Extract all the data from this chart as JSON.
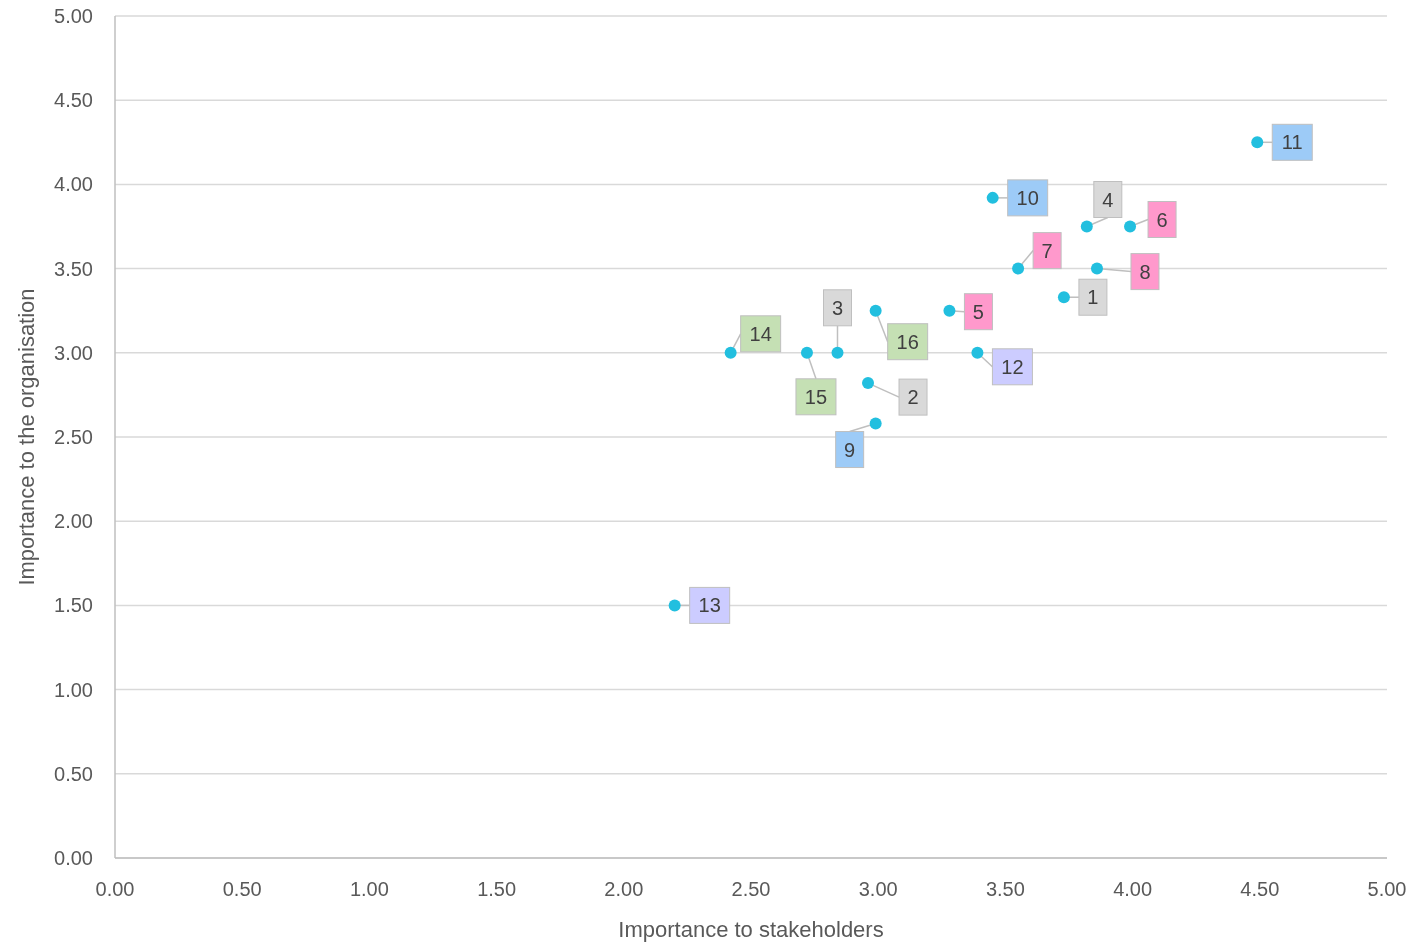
{
  "chart_data": {
    "type": "scatter",
    "xlabel": "Importance to stakeholders",
    "ylabel": "Importance to the organisation",
    "xlim": [
      0,
      5
    ],
    "ylim": [
      0,
      5
    ],
    "xticks": [
      {
        "value": 0,
        "label": "0.00"
      },
      {
        "value": 0.5,
        "label": "0.50"
      },
      {
        "value": 1,
        "label": "1.00"
      },
      {
        "value": 1.5,
        "label": "1.50"
      },
      {
        "value": 2,
        "label": "2.00"
      },
      {
        "value": 2.5,
        "label": "2.50"
      },
      {
        "value": 3,
        "label": "3.00"
      },
      {
        "value": 3.5,
        "label": "3.50"
      },
      {
        "value": 4,
        "label": "4.00"
      },
      {
        "value": 4.5,
        "label": "4.50"
      },
      {
        "value": 5,
        "label": "5.00"
      }
    ],
    "yticks": [
      {
        "value": 0,
        "label": "0.00"
      },
      {
        "value": 0.5,
        "label": "0.50"
      },
      {
        "value": 1,
        "label": "1.00"
      },
      {
        "value": 1.5,
        "label": "1.50"
      },
      {
        "value": 2,
        "label": "2.00"
      },
      {
        "value": 2.5,
        "label": "2.50"
      },
      {
        "value": 3,
        "label": "3.00"
      },
      {
        "value": 3.5,
        "label": "3.50"
      },
      {
        "value": 4,
        "label": "4.00"
      },
      {
        "value": 4.5,
        "label": "4.50"
      },
      {
        "value": 5,
        "label": "5.00"
      }
    ],
    "grid": "y",
    "marker": "circle",
    "annotations": [
      {
        "text": "1",
        "x": 3.73,
        "y": 3.33
      },
      {
        "text": "2",
        "x": 2.96,
        "y": 2.82
      },
      {
        "text": "3",
        "x": 2.84,
        "y": 3.0
      },
      {
        "text": "4",
        "x": 3.82,
        "y": 3.75
      },
      {
        "text": "5",
        "x": 3.28,
        "y": 3.25
      },
      {
        "text": "6",
        "x": 3.99,
        "y": 3.75
      },
      {
        "text": "7",
        "x": 3.55,
        "y": 3.5
      },
      {
        "text": "8",
        "x": 3.86,
        "y": 3.5
      },
      {
        "text": "9",
        "x": 2.99,
        "y": 2.58
      },
      {
        "text": "10",
        "x": 3.45,
        "y": 3.92
      },
      {
        "text": "11",
        "x": 4.49,
        "y": 4.25
      },
      {
        "text": "12",
        "x": 3.39,
        "y": 3.0
      },
      {
        "text": "13",
        "x": 2.2,
        "y": 1.5
      },
      {
        "text": "14",
        "x": 2.42,
        "y": 3.0
      },
      {
        "text": "15",
        "x": 2.72,
        "y": 3.0
      },
      {
        "text": "16",
        "x": 2.99,
        "y": 3.25
      }
    ],
    "series": [
      {
        "color": "#22bfdf",
        "x": [
          3.73,
          2.96,
          2.84,
          3.82,
          3.28,
          3.99,
          3.55,
          3.86,
          2.99,
          3.45,
          4.49,
          3.39,
          2.2,
          2.42,
          2.72,
          2.99
        ],
        "values": [
          3.33,
          2.82,
          3.0,
          3.75,
          3.25,
          3.75,
          3.5,
          3.5,
          2.58,
          3.92,
          4.25,
          3.0,
          1.5,
          3.0,
          3.0,
          3.25
        ]
      }
    ]
  }
}
